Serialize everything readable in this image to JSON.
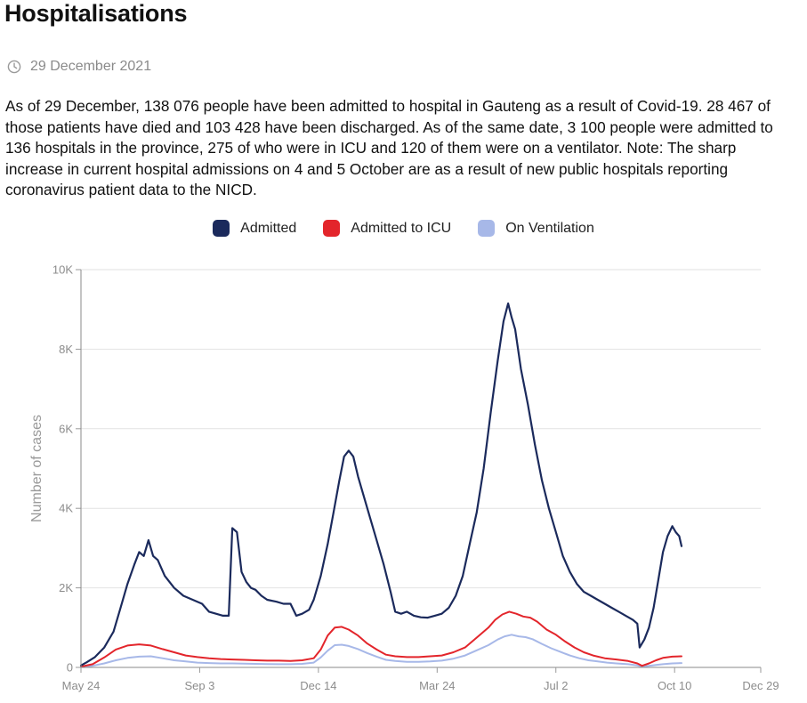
{
  "header": {
    "title": "Hospitalisations",
    "date": "29 December 2021",
    "icon": "clock-icon"
  },
  "description": "As of 29 December, 138 076 people have been admitted to hospital in Gauteng as a result of Covid-19. 28 467 of those patients have died and 103 428 have been discharged. As of the same date, 3 100 people were admitted to 136 hospitals in the province, 275 of who were in ICU and 120 of them were on a ventilator. Note: The sharp increase in current hospital admissions on 4 and 5 October are as a result of new public hospitals reporting coronavirus patient data to the NICD.",
  "chart_data": {
    "type": "line",
    "title": "Hospitalisations",
    "xlabel": "",
    "ylabel": "Number of cases",
    "ylim": [
      0,
      10000
    ],
    "yticks": [
      0,
      2000,
      4000,
      6000,
      8000,
      10000
    ],
    "ytick_labels": [
      "0",
      "2K",
      "4K",
      "6K",
      "8K",
      "10K"
    ],
    "xlim": [
      0,
      584
    ],
    "xticks": [
      0,
      102,
      204,
      306,
      408,
      510
    ],
    "xtick_labels": [
      "May 24",
      "Sep 3",
      "Dec 14",
      "Mar 24",
      "Jul 2",
      "Oct 10"
    ],
    "last_label": "Dec 29",
    "legend_position": "top-center",
    "series": [
      {
        "name": "Admitted",
        "color": "#1b2a5c",
        "points": [
          [
            0,
            50
          ],
          [
            5,
            130
          ],
          [
            12,
            260
          ],
          [
            20,
            500
          ],
          [
            28,
            900
          ],
          [
            34,
            1500
          ],
          [
            40,
            2100
          ],
          [
            46,
            2600
          ],
          [
            50,
            2900
          ],
          [
            54,
            2800
          ],
          [
            58,
            3200
          ],
          [
            62,
            2800
          ],
          [
            66,
            2700
          ],
          [
            72,
            2300
          ],
          [
            80,
            2000
          ],
          [
            88,
            1800
          ],
          [
            96,
            1700
          ],
          [
            104,
            1600
          ],
          [
            110,
            1400
          ],
          [
            116,
            1350
          ],
          [
            122,
            1300
          ],
          [
            127,
            1300
          ],
          [
            130,
            3500
          ],
          [
            134,
            3400
          ],
          [
            138,
            2400
          ],
          [
            142,
            2150
          ],
          [
            146,
            2000
          ],
          [
            150,
            1950
          ],
          [
            155,
            1800
          ],
          [
            160,
            1700
          ],
          [
            168,
            1650
          ],
          [
            174,
            1600
          ],
          [
            180,
            1600
          ],
          [
            185,
            1300
          ],
          [
            190,
            1350
          ],
          [
            196,
            1450
          ],
          [
            200,
            1700
          ],
          [
            206,
            2300
          ],
          [
            212,
            3100
          ],
          [
            217,
            3900
          ],
          [
            222,
            4700
          ],
          [
            226,
            5300
          ],
          [
            230,
            5450
          ],
          [
            234,
            5300
          ],
          [
            238,
            4800
          ],
          [
            242,
            4400
          ],
          [
            248,
            3800
          ],
          [
            254,
            3200
          ],
          [
            260,
            2600
          ],
          [
            266,
            1900
          ],
          [
            270,
            1400
          ],
          [
            275,
            1350
          ],
          [
            280,
            1400
          ],
          [
            286,
            1300
          ],
          [
            292,
            1260
          ],
          [
            298,
            1250
          ],
          [
            304,
            1300
          ],
          [
            310,
            1350
          ],
          [
            316,
            1500
          ],
          [
            322,
            1800
          ],
          [
            328,
            2300
          ],
          [
            334,
            3100
          ],
          [
            340,
            3900
          ],
          [
            346,
            5000
          ],
          [
            352,
            6400
          ],
          [
            358,
            7700
          ],
          [
            363,
            8700
          ],
          [
            367,
            9150
          ],
          [
            370,
            8800
          ],
          [
            373,
            8500
          ],
          [
            378,
            7500
          ],
          [
            384,
            6600
          ],
          [
            390,
            5600
          ],
          [
            396,
            4700
          ],
          [
            402,
            4000
          ],
          [
            408,
            3400
          ],
          [
            414,
            2800
          ],
          [
            420,
            2400
          ],
          [
            426,
            2100
          ],
          [
            432,
            1900
          ],
          [
            438,
            1800
          ],
          [
            444,
            1700
          ],
          [
            450,
            1600
          ],
          [
            456,
            1500
          ],
          [
            462,
            1400
          ],
          [
            468,
            1300
          ],
          [
            474,
            1200
          ],
          [
            478,
            1100
          ],
          [
            480,
            500
          ],
          [
            484,
            700
          ],
          [
            488,
            1000
          ],
          [
            492,
            1500
          ],
          [
            496,
            2200
          ],
          [
            500,
            2900
          ],
          [
            504,
            3300
          ],
          [
            508,
            3550
          ],
          [
            511,
            3400
          ],
          [
            514,
            3300
          ],
          [
            516,
            3050
          ]
        ]
      },
      {
        "name": "Admitted to ICU",
        "color": "#e3252b",
        "points": [
          [
            0,
            20
          ],
          [
            10,
            80
          ],
          [
            20,
            250
          ],
          [
            30,
            450
          ],
          [
            40,
            550
          ],
          [
            50,
            580
          ],
          [
            60,
            550
          ],
          [
            70,
            460
          ],
          [
            80,
            380
          ],
          [
            90,
            300
          ],
          [
            100,
            260
          ],
          [
            110,
            230
          ],
          [
            120,
            210
          ],
          [
            130,
            200
          ],
          [
            140,
            190
          ],
          [
            150,
            180
          ],
          [
            160,
            170
          ],
          [
            170,
            170
          ],
          [
            180,
            160
          ],
          [
            190,
            180
          ],
          [
            200,
            230
          ],
          [
            206,
            450
          ],
          [
            212,
            800
          ],
          [
            218,
            1000
          ],
          [
            224,
            1020
          ],
          [
            230,
            950
          ],
          [
            238,
            800
          ],
          [
            246,
            600
          ],
          [
            254,
            450
          ],
          [
            262,
            320
          ],
          [
            270,
            280
          ],
          [
            280,
            260
          ],
          [
            290,
            260
          ],
          [
            300,
            280
          ],
          [
            310,
            300
          ],
          [
            320,
            380
          ],
          [
            330,
            500
          ],
          [
            340,
            750
          ],
          [
            350,
            1000
          ],
          [
            356,
            1200
          ],
          [
            362,
            1330
          ],
          [
            368,
            1400
          ],
          [
            374,
            1350
          ],
          [
            380,
            1280
          ],
          [
            386,
            1250
          ],
          [
            392,
            1150
          ],
          [
            400,
            950
          ],
          [
            408,
            820
          ],
          [
            416,
            650
          ],
          [
            424,
            500
          ],
          [
            432,
            380
          ],
          [
            440,
            300
          ],
          [
            450,
            230
          ],
          [
            460,
            200
          ],
          [
            470,
            160
          ],
          [
            478,
            100
          ],
          [
            482,
            40
          ],
          [
            488,
            100
          ],
          [
            494,
            180
          ],
          [
            500,
            240
          ],
          [
            508,
            270
          ],
          [
            516,
            280
          ]
        ]
      },
      {
        "name": "On Ventilation",
        "color": "#a7b8e8",
        "points": [
          [
            0,
            10
          ],
          [
            10,
            40
          ],
          [
            20,
            100
          ],
          [
            30,
            180
          ],
          [
            40,
            240
          ],
          [
            50,
            270
          ],
          [
            60,
            280
          ],
          [
            70,
            230
          ],
          [
            80,
            180
          ],
          [
            90,
            150
          ],
          [
            100,
            120
          ],
          [
            110,
            110
          ],
          [
            120,
            100
          ],
          [
            130,
            100
          ],
          [
            140,
            95
          ],
          [
            150,
            90
          ],
          [
            160,
            85
          ],
          [
            170,
            80
          ],
          [
            180,
            80
          ],
          [
            190,
            90
          ],
          [
            200,
            120
          ],
          [
            206,
            250
          ],
          [
            212,
            420
          ],
          [
            218,
            560
          ],
          [
            224,
            570
          ],
          [
            230,
            540
          ],
          [
            238,
            460
          ],
          [
            246,
            360
          ],
          [
            254,
            270
          ],
          [
            262,
            190
          ],
          [
            270,
            160
          ],
          [
            280,
            140
          ],
          [
            290,
            140
          ],
          [
            300,
            150
          ],
          [
            310,
            170
          ],
          [
            320,
            220
          ],
          [
            330,
            300
          ],
          [
            340,
            430
          ],
          [
            350,
            560
          ],
          [
            358,
            700
          ],
          [
            364,
            780
          ],
          [
            370,
            820
          ],
          [
            376,
            780
          ],
          [
            382,
            760
          ],
          [
            388,
            710
          ],
          [
            396,
            590
          ],
          [
            404,
            480
          ],
          [
            412,
            390
          ],
          [
            420,
            300
          ],
          [
            428,
            230
          ],
          [
            436,
            180
          ],
          [
            444,
            150
          ],
          [
            452,
            120
          ],
          [
            460,
            100
          ],
          [
            470,
            80
          ],
          [
            478,
            50
          ],
          [
            482,
            20
          ],
          [
            488,
            40
          ],
          [
            494,
            60
          ],
          [
            500,
            80
          ],
          [
            508,
            100
          ],
          [
            516,
            110
          ]
        ]
      }
    ]
  }
}
